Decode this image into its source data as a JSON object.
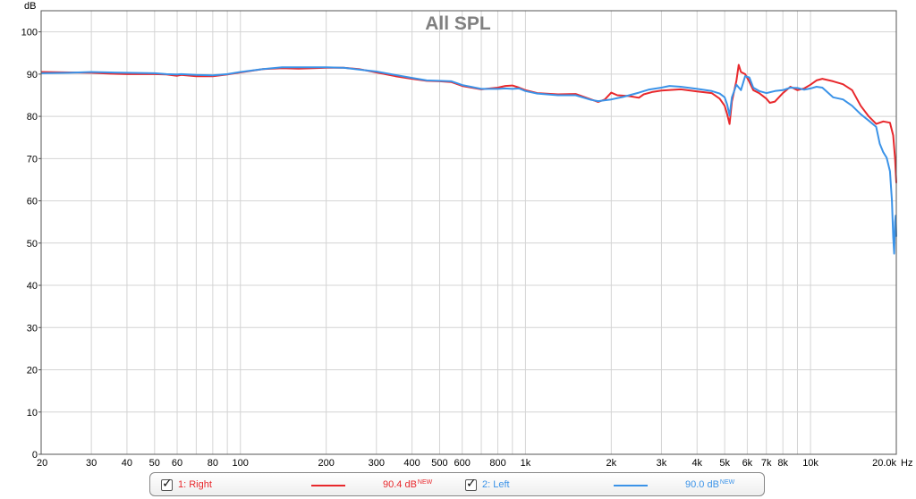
{
  "chart_data": {
    "type": "line",
    "title": "All SPL",
    "ylabel": "dB",
    "xlabel": "Hz",
    "x_scale": "log",
    "xlim": [
      20,
      20000
    ],
    "ylim": [
      0,
      105
    ],
    "grid": true,
    "y_ticks": [
      0,
      10,
      20,
      30,
      40,
      50,
      60,
      70,
      80,
      90,
      100
    ],
    "x_ticks": [
      {
        "value": 20,
        "label": "20"
      },
      {
        "value": 30,
        "label": "30"
      },
      {
        "value": 40,
        "label": "40"
      },
      {
        "value": 50,
        "label": "50"
      },
      {
        "value": 60,
        "label": "60"
      },
      {
        "value": 80,
        "label": "80"
      },
      {
        "value": 100,
        "label": "100"
      },
      {
        "value": 200,
        "label": "200"
      },
      {
        "value": 300,
        "label": "300"
      },
      {
        "value": 400,
        "label": "400"
      },
      {
        "value": 500,
        "label": "500"
      },
      {
        "value": 600,
        "label": "600"
      },
      {
        "value": 800,
        "label": "800"
      },
      {
        "value": 1000,
        "label": "1k"
      },
      {
        "value": 2000,
        "label": "2k"
      },
      {
        "value": 3000,
        "label": "3k"
      },
      {
        "value": 4000,
        "label": "4k"
      },
      {
        "value": 5000,
        "label": "5k"
      },
      {
        "value": 6000,
        "label": "6k"
      },
      {
        "value": 7000,
        "label": "7k"
      },
      {
        "value": 8000,
        "label": "8k"
      },
      {
        "value": 10000,
        "label": "10k"
      },
      {
        "value": 20000,
        "label": "20.0k"
      }
    ],
    "series": [
      {
        "name": "1: Right",
        "color": "#e8282c",
        "level": "90.4 dB",
        "level_tag": "NEW",
        "points": [
          [
            20,
            90.5
          ],
          [
            25,
            90.4
          ],
          [
            30,
            90.3
          ],
          [
            35,
            90.1
          ],
          [
            40,
            90.0
          ],
          [
            50,
            90.0
          ],
          [
            55,
            89.9
          ],
          [
            60,
            89.6
          ],
          [
            62,
            89.8
          ],
          [
            70,
            89.5
          ],
          [
            80,
            89.5
          ],
          [
            90,
            89.9
          ],
          [
            100,
            90.4
          ],
          [
            120,
            91.2
          ],
          [
            140,
            91.4
          ],
          [
            160,
            91.3
          ],
          [
            180,
            91.4
          ],
          [
            200,
            91.5
          ],
          [
            230,
            91.5
          ],
          [
            260,
            91.2
          ],
          [
            300,
            90.4
          ],
          [
            350,
            89.5
          ],
          [
            400,
            88.9
          ],
          [
            450,
            88.4
          ],
          [
            500,
            88.3
          ],
          [
            550,
            88.1
          ],
          [
            600,
            87.2
          ],
          [
            700,
            86.4
          ],
          [
            800,
            86.8
          ],
          [
            850,
            87.2
          ],
          [
            900,
            87.3
          ],
          [
            950,
            86.8
          ],
          [
            1000,
            86.2
          ],
          [
            1100,
            85.5
          ],
          [
            1300,
            85.2
          ],
          [
            1500,
            85.3
          ],
          [
            1700,
            84.0
          ],
          [
            1800,
            83.4
          ],
          [
            1900,
            84.0
          ],
          [
            2000,
            85.6
          ],
          [
            2100,
            85.0
          ],
          [
            2300,
            84.8
          ],
          [
            2500,
            84.4
          ],
          [
            2600,
            85.2
          ],
          [
            2800,
            85.8
          ],
          [
            3000,
            86.1
          ],
          [
            3500,
            86.4
          ],
          [
            4000,
            85.9
          ],
          [
            4500,
            85.5
          ],
          [
            4800,
            84.2
          ],
          [
            5000,
            82.5
          ],
          [
            5100,
            80.5
          ],
          [
            5200,
            78.2
          ],
          [
            5300,
            83.5
          ],
          [
            5500,
            88.5
          ],
          [
            5600,
            92.2
          ],
          [
            5700,
            90.5
          ],
          [
            5900,
            90.0
          ],
          [
            6100,
            88.2
          ],
          [
            6300,
            86.2
          ],
          [
            6600,
            85.5
          ],
          [
            7000,
            84.2
          ],
          [
            7200,
            83.2
          ],
          [
            7500,
            83.5
          ],
          [
            8000,
            85.5
          ],
          [
            8500,
            87.0
          ],
          [
            9000,
            86.2
          ],
          [
            9500,
            86.6
          ],
          [
            10000,
            87.5
          ],
          [
            10500,
            88.5
          ],
          [
            11000,
            88.9
          ],
          [
            12000,
            88.3
          ],
          [
            13000,
            87.6
          ],
          [
            14000,
            86.2
          ],
          [
            15000,
            82.5
          ],
          [
            16000,
            80.0
          ],
          [
            17000,
            78.2
          ],
          [
            18000,
            78.8
          ],
          [
            19000,
            78.5
          ],
          [
            19500,
            75.5
          ],
          [
            19800,
            70.0
          ],
          [
            20000,
            64.2
          ]
        ]
      },
      {
        "name": "2: Left",
        "color": "#3b93e8",
        "level": "90.0 dB",
        "level_tag": "NEW",
        "points": [
          [
            20,
            90.2
          ],
          [
            25,
            90.3
          ],
          [
            30,
            90.5
          ],
          [
            35,
            90.4
          ],
          [
            40,
            90.3
          ],
          [
            50,
            90.2
          ],
          [
            55,
            90.0
          ],
          [
            60,
            89.9
          ],
          [
            62,
            90.0
          ],
          [
            70,
            89.8
          ],
          [
            80,
            89.7
          ],
          [
            90,
            90.0
          ],
          [
            100,
            90.5
          ],
          [
            120,
            91.2
          ],
          [
            140,
            91.6
          ],
          [
            160,
            91.6
          ],
          [
            180,
            91.6
          ],
          [
            200,
            91.6
          ],
          [
            230,
            91.5
          ],
          [
            260,
            91.1
          ],
          [
            300,
            90.6
          ],
          [
            350,
            89.8
          ],
          [
            400,
            89.1
          ],
          [
            450,
            88.5
          ],
          [
            500,
            88.4
          ],
          [
            550,
            88.3
          ],
          [
            600,
            87.4
          ],
          [
            700,
            86.5
          ],
          [
            800,
            86.5
          ],
          [
            850,
            86.6
          ],
          [
            900,
            86.5
          ],
          [
            950,
            86.6
          ],
          [
            1000,
            86.0
          ],
          [
            1100,
            85.4
          ],
          [
            1300,
            85.0
          ],
          [
            1500,
            85.0
          ],
          [
            1700,
            83.9
          ],
          [
            1800,
            83.6
          ],
          [
            1900,
            83.8
          ],
          [
            2000,
            84.0
          ],
          [
            2200,
            84.6
          ],
          [
            2500,
            85.6
          ],
          [
            2700,
            86.3
          ],
          [
            3000,
            86.8
          ],
          [
            3200,
            87.2
          ],
          [
            3500,
            87.0
          ],
          [
            4000,
            86.5
          ],
          [
            4500,
            86.0
          ],
          [
            4800,
            85.4
          ],
          [
            5000,
            84.5
          ],
          [
            5100,
            82.8
          ],
          [
            5200,
            80.2
          ],
          [
            5300,
            84.5
          ],
          [
            5500,
            87.5
          ],
          [
            5700,
            86.2
          ],
          [
            5900,
            89.5
          ],
          [
            6100,
            89.2
          ],
          [
            6300,
            86.8
          ],
          [
            6600,
            86.0
          ],
          [
            7000,
            85.5
          ],
          [
            7500,
            86.0
          ],
          [
            8000,
            86.2
          ],
          [
            8500,
            86.8
          ],
          [
            9000,
            86.7
          ],
          [
            9500,
            86.3
          ],
          [
            10000,
            86.6
          ],
          [
            10500,
            87.0
          ],
          [
            11000,
            86.8
          ],
          [
            12000,
            84.5
          ],
          [
            13000,
            84.0
          ],
          [
            14000,
            82.5
          ],
          [
            15000,
            80.5
          ],
          [
            16000,
            79.0
          ],
          [
            17000,
            77.5
          ],
          [
            17500,
            73.5
          ],
          [
            18000,
            71.5
          ],
          [
            18500,
            70.2
          ],
          [
            19000,
            67.0
          ],
          [
            19300,
            60.0
          ],
          [
            19500,
            51.5
          ],
          [
            19650,
            47.5
          ],
          [
            19800,
            55.0
          ],
          [
            19900,
            56.5
          ],
          [
            20000,
            51.5
          ]
        ]
      }
    ]
  }
}
